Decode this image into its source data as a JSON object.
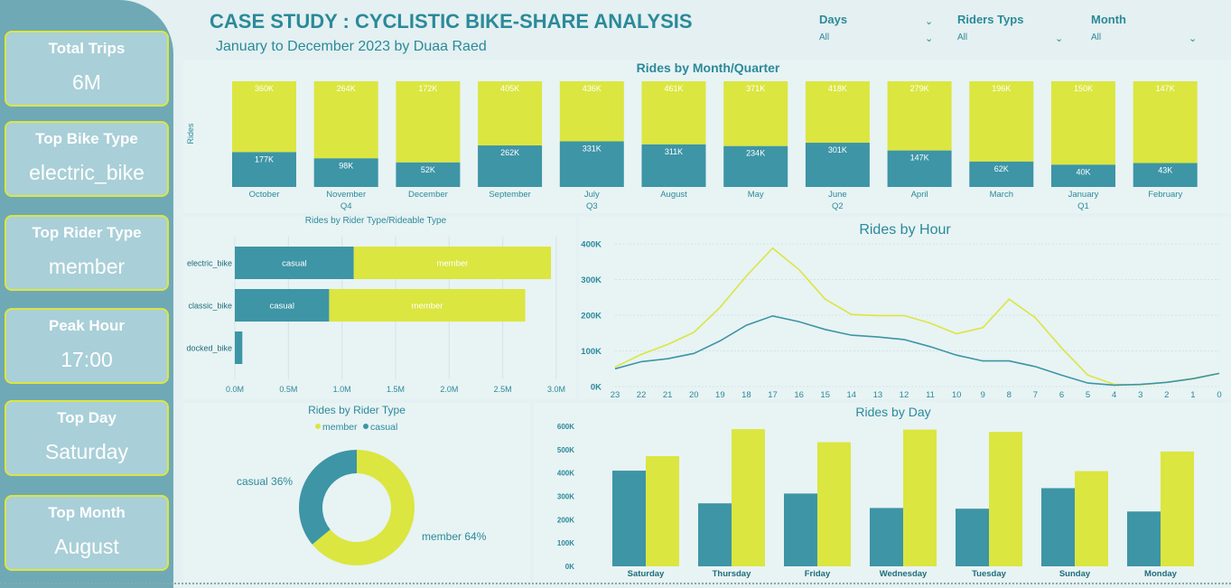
{
  "header": {
    "title": "CASE STUDY : CYCLISTIC BIKE-SHARE ANALYSIS",
    "subtitle": "January to December 2023  by Duaa Raed"
  },
  "filters": [
    {
      "label": "Days",
      "value": "All"
    },
    {
      "label": "Riders Typs",
      "value": "All"
    },
    {
      "label": "Month",
      "value": "All"
    }
  ],
  "kpis": [
    {
      "label": "Total Trips",
      "value": "6M"
    },
    {
      "label": "Top Bike Type",
      "value": "electric_bike"
    },
    {
      "label": "Top Rider Type",
      "value": "member"
    },
    {
      "label": "Peak Hour",
      "value": "17:00"
    },
    {
      "label": "Top Day",
      "value": "Saturday"
    },
    {
      "label": "Top Month",
      "value": "August"
    }
  ],
  "colors": {
    "member": "#dbe640",
    "casual": "#3d95a6",
    "text": "#2b8a9a",
    "sidebar": "#6fa9b6",
    "card": "#a9cfd8"
  },
  "chart_data": [
    {
      "id": "month",
      "type": "bar",
      "title": "Rides by Month/Quarter",
      "ylabel": "Rides",
      "stacked": true,
      "normalized": true,
      "categories": [
        "October",
        "November",
        "December",
        "September",
        "July",
        "August",
        "May",
        "June",
        "April",
        "March",
        "January",
        "February"
      ],
      "quarter_labels": [
        {
          "label": "Q4",
          "under": "November"
        },
        {
          "label": "Q3",
          "under": "July"
        },
        {
          "label": "Q2",
          "under": "June"
        },
        {
          "label": "Q1",
          "under": "January"
        }
      ],
      "series": [
        {
          "name": "casual",
          "values": [
            177,
            98,
            52,
            262,
            331,
            311,
            234,
            301,
            147,
            62,
            40,
            43
          ],
          "labels": [
            "177K",
            "98K",
            "52K",
            "262K",
            "331K",
            "311K",
            "234K",
            "301K",
            "147K",
            "62K",
            "40K",
            "43K"
          ]
        },
        {
          "name": "member",
          "values": [
            360,
            264,
            172,
            405,
            436,
            461,
            371,
            418,
            279,
            196,
            150,
            147
          ],
          "labels": [
            "360K",
            "264K",
            "172K",
            "405K",
            "436K",
            "461K",
            "371K",
            "418K",
            "279K",
            "196K",
            "150K",
            "147K"
          ]
        }
      ]
    },
    {
      "id": "ridertype",
      "type": "bar",
      "orientation": "horizontal",
      "stacked": true,
      "title": "Rides by Rider Type/Rideable Type",
      "categories": [
        "electric_bike",
        "classic_bike",
        "docked_bike"
      ],
      "series": [
        {
          "name": "casual",
          "values": [
            1.11,
            0.88,
            0.07
          ],
          "labels": [
            "casual",
            "casual",
            ""
          ]
        },
        {
          "name": "member",
          "values": [
            1.84,
            1.83,
            0
          ],
          "labels": [
            "member",
            "member",
            ""
          ]
        }
      ],
      "xlim": [
        0,
        3.0
      ],
      "xticks": [
        "0.0M",
        "0.5M",
        "1.0M",
        "1.5M",
        "2.0M",
        "2.5M",
        "3.0M"
      ]
    },
    {
      "id": "hour",
      "type": "line",
      "title": "Rides by Hour",
      "x": [
        23,
        22,
        21,
        20,
        19,
        18,
        17,
        16,
        15,
        14,
        13,
        12,
        11,
        10,
        9,
        8,
        7,
        6,
        5,
        4,
        3,
        2,
        1,
        0
      ],
      "series": [
        {
          "name": "member",
          "values": [
            55,
            90,
            118,
            152,
            222,
            310,
            388,
            328,
            245,
            202,
            199,
            199,
            178,
            148,
            165,
            245,
            193,
            108,
            32,
            6,
            5,
            12,
            23,
            37
          ]
        },
        {
          "name": "casual",
          "values": [
            50,
            70,
            78,
            93,
            128,
            172,
            198,
            182,
            160,
            144,
            139,
            132,
            112,
            88,
            72,
            72,
            56,
            32,
            10,
            4,
            6,
            12,
            22,
            37
          ]
        }
      ],
      "ylim": [
        0,
        400
      ],
      "yticks": [
        "0K",
        "100K",
        "200K",
        "300K",
        "400K"
      ]
    },
    {
      "id": "donut",
      "type": "pie",
      "title": "Rides by Rider Type",
      "legend": [
        "member",
        "casual"
      ],
      "slices": [
        {
          "name": "member",
          "value": 64,
          "label": "member 64%"
        },
        {
          "name": "casual",
          "value": 36,
          "label": "casual 36%"
        }
      ]
    },
    {
      "id": "day",
      "type": "bar",
      "title": "Rides by Day",
      "categories": [
        "Saturday",
        "Thursday",
        "Friday",
        "Wednesday",
        "Tuesday",
        "Sunday",
        "Monday"
      ],
      "series": [
        {
          "name": "casual",
          "values": [
            410,
            270,
            312,
            250,
            247,
            335,
            235
          ]
        },
        {
          "name": "member",
          "values": [
            472,
            588,
            532,
            586,
            576,
            408,
            492
          ]
        }
      ],
      "ylim": [
        0,
        600
      ],
      "yticks": [
        "0K",
        "100K",
        "200K",
        "300K",
        "400K",
        "500K",
        "600K"
      ]
    }
  ]
}
